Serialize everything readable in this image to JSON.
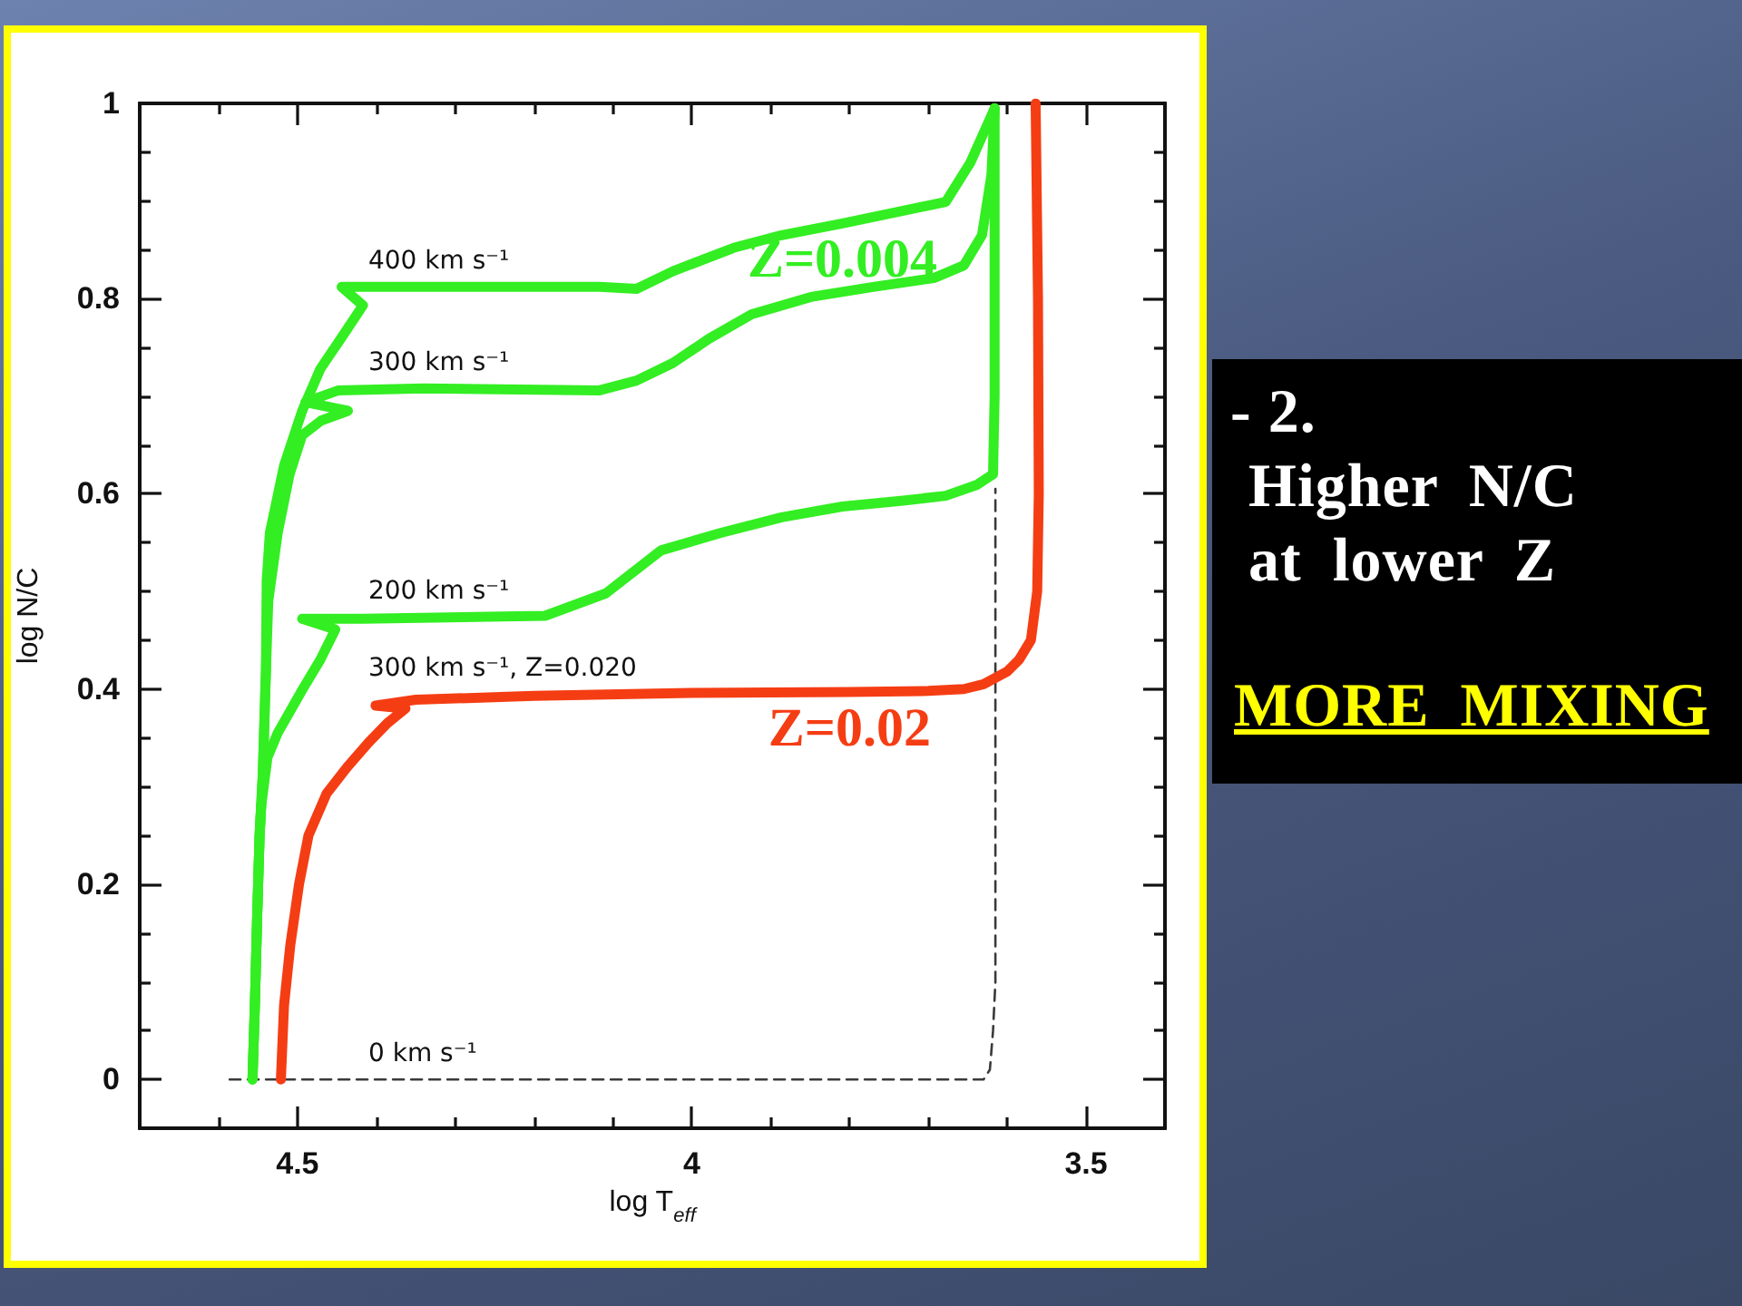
{
  "chart_data": [
    {
      "type": "line",
      "xlabel": "log T$_{eff}$",
      "ylabel": "log N/C",
      "xlim": [
        4.7,
        3.4
      ],
      "ylim": [
        -0.05,
        1
      ],
      "xticks": [
        {
          "value": 4.6,
          "label": null
        },
        4.5,
        {
          "value": 4.4,
          "label": null
        },
        {
          "value": 4.3,
          "label": null
        },
        {
          "value": 4.2,
          "label": null
        },
        {
          "value": 4.1,
          "label": null
        },
        4,
        {
          "value": 3.9,
          "label": null
        },
        {
          "value": 3.8,
          "label": null
        },
        {
          "value": 3.7,
          "label": null
        },
        {
          "value": 3.6,
          "label": null
        },
        3.5
      ],
      "yticks": [
        0,
        {
          "value": 0.05,
          "label": null
        },
        {
          "value": 0.1,
          "label": null
        },
        {
          "value": 0.15,
          "label": null
        },
        0.2,
        {
          "value": 0.25,
          "label": null
        },
        {
          "value": 0.3,
          "label": null
        },
        {
          "value": 0.35,
          "label": null
        },
        0.4,
        {
          "value": 0.45,
          "label": null
        },
        {
          "value": 0.5,
          "label": null
        },
        {
          "value": 0.55,
          "label": null
        },
        0.6,
        {
          "value": 0.65,
          "label": null
        },
        {
          "value": 0.7,
          "label": null
        },
        {
          "value": 0.75,
          "label": null
        },
        0.8,
        {
          "value": 0.85,
          "label": null
        },
        {
          "value": 0.9,
          "label": null
        },
        {
          "value": 0.95,
          "label": null
        },
        1
      ],
      "marker": "none",
      "line_style": "solid",
      "series": [
        {
          "name": "0 km s⁻¹",
          "color": "#3a3a3a",
          "line_style": "dashed",
          "x": [
            4.586,
            3.63,
            3.622,
            3.618,
            3.615,
            3.615
          ],
          "values": [
            0,
            0,
            0.01,
            0.05,
            0.1,
            0.605
          ]
        },
        {
          "name": "300 km s⁻¹, Z=0.020",
          "color": "#f53d14",
          "x": [
            4.521,
            4.517,
            4.509,
            4.498,
            4.486,
            4.463,
            4.437,
            4.41,
            4.386,
            4.363,
            4.401,
            4.35,
            4.2,
            4.0,
            3.8,
            3.7,
            3.655,
            3.63,
            3.6,
            3.585,
            3.57,
            3.562,
            3.56,
            3.561,
            3.564
          ],
          "values": [
            0,
            0.076,
            0.138,
            0.2,
            0.25,
            0.293,
            0.32,
            0.345,
            0.365,
            0.38,
            0.383,
            0.389,
            0.393,
            0.396,
            0.397,
            0.398,
            0.4,
            0.405,
            0.418,
            0.43,
            0.45,
            0.5,
            0.6,
            0.8,
            1.0
          ]
        },
        {
          "name": "200 km s⁻¹",
          "color": "#33ee22",
          "x": [
            4.557,
            4.554,
            4.551,
            4.548,
            4.546,
            4.538,
            4.525,
            4.494,
            4.471,
            4.452,
            4.494,
            4.417,
            4.186,
            4.109,
            4.039,
            3.963,
            3.886,
            3.809,
            3.732,
            3.678,
            3.639,
            3.618,
            3.616,
            3.616,
            3.616
          ],
          "values": [
            0,
            0.076,
            0.169,
            0.25,
            0.28,
            0.33,
            0.355,
            0.399,
            0.43,
            0.461,
            0.472,
            0.472,
            0.475,
            0.498,
            0.542,
            0.56,
            0.576,
            0.587,
            0.593,
            0.598,
            0.609,
            0.62,
            0.7,
            0.85,
            0.995
          ]
        },
        {
          "name": "300 km s⁻¹",
          "color": "#33ee22",
          "x": [
            4.557,
            4.554,
            4.551,
            4.548,
            4.544,
            4.54,
            4.537,
            4.525,
            4.51,
            4.494,
            4.47,
            4.436,
            4.49,
            4.448,
            4.34,
            4.117,
            4.07,
            4.024,
            3.978,
            3.924,
            3.847,
            3.77,
            3.693,
            3.655,
            3.632,
            3.62,
            3.616
          ],
          "values": [
            0,
            0.076,
            0.169,
            0.25,
            0.312,
            0.418,
            0.49,
            0.56,
            0.62,
            0.66,
            0.675,
            0.685,
            0.694,
            0.706,
            0.708,
            0.706,
            0.716,
            0.734,
            0.759,
            0.784,
            0.802,
            0.812,
            0.821,
            0.834,
            0.865,
            0.927,
            0.995
          ]
        },
        {
          "name": "400 km s⁻¹",
          "color": "#33ee22",
          "x": [
            4.557,
            4.554,
            4.551,
            4.548,
            4.544,
            4.54,
            4.539,
            4.535,
            4.517,
            4.494,
            4.471,
            4.44,
            4.417,
            4.444,
            4.3,
            4.117,
            4.07,
            4.024,
            3.947,
            3.886,
            3.809,
            3.732,
            3.678,
            3.647,
            3.616
          ],
          "values": [
            0,
            0.076,
            0.169,
            0.25,
            0.312,
            0.418,
            0.511,
            0.56,
            0.629,
            0.685,
            0.728,
            0.765,
            0.793,
            0.812,
            0.812,
            0.812,
            0.81,
            0.828,
            0.852,
            0.865,
            0.877,
            0.89,
            0.899,
            0.939,
            0.995
          ]
        }
      ],
      "annotations": [
        {
          "text": "Z=0.004",
          "x": 3.809,
          "y": 0.877
        },
        {
          "text": "Z=0.02",
          "x": 3.8,
          "y": 0.397
        }
      ]
    },
    {
      "type": "other",
      "annotations": [
        "- 2.",
        "Higher N/C",
        "at lower Z",
        "MORE MIXING"
      ]
    }
  ]
}
